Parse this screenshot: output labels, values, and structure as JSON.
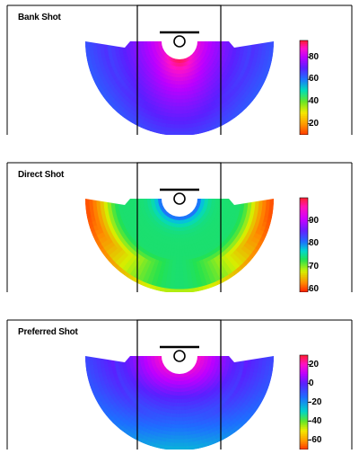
{
  "chart_data": [
    {
      "type": "heatmap",
      "title": "Bank Shot",
      "colorbar": {
        "range": [
          10,
          95
        ],
        "ticks": [
          20,
          40,
          60,
          80
        ],
        "tick_labels": [
          "20",
          "40",
          "60",
          "80"
        ],
        "stops": [
          {
            "value": 10,
            "color": "#ff3b00"
          },
          {
            "value": 20,
            "color": "#ff9c00"
          },
          {
            "value": 30,
            "color": "#f4ea00"
          },
          {
            "value": 40,
            "color": "#67e626"
          },
          {
            "value": 50,
            "color": "#00dfb8"
          },
          {
            "value": 60,
            "color": "#1d74ff"
          },
          {
            "value": 70,
            "color": "#5a20ff"
          },
          {
            "value": 80,
            "color": "#bd00ff"
          },
          {
            "value": 88,
            "color": "#ff12c8"
          },
          {
            "value": 95,
            "color": "#ff1c2d"
          }
        ]
      },
      "field": {
        "kind": "bank",
        "top": 95,
        "mid": 80,
        "bottom": 60,
        "center_boost": 10
      }
    },
    {
      "type": "heatmap",
      "title": "Direct Shot",
      "colorbar": {
        "range": [
          59,
          100
        ],
        "ticks": [
          60,
          70,
          80,
          90
        ],
        "tick_labels": [
          "60",
          "70",
          "80",
          "90"
        ],
        "stops": [
          {
            "value": 59,
            "color": "#ff1d00"
          },
          {
            "value": 63,
            "color": "#ff8a00"
          },
          {
            "value": 68,
            "color": "#d5f000"
          },
          {
            "value": 73,
            "color": "#24e24f"
          },
          {
            "value": 77,
            "color": "#00d7d0"
          },
          {
            "value": 81,
            "color": "#1f6cff"
          },
          {
            "value": 86,
            "color": "#6a1dff"
          },
          {
            "value": 91,
            "color": "#d100ff"
          },
          {
            "value": 96,
            "color": "#ff13b8"
          },
          {
            "value": 100,
            "color": "#ff1f2c"
          }
        ]
      },
      "field": {
        "kind": "direct",
        "center": 100,
        "plateau": 74,
        "edge": 60
      }
    },
    {
      "type": "heatmap",
      "title": "Preferred Shot",
      "colorbar": {
        "range": [
          -70,
          30
        ],
        "ticks": [
          20,
          0,
          -20,
          -40,
          -60
        ],
        "tick_labels": [
          "20",
          "0",
          "-20",
          "-40",
          "-60"
        ],
        "stops": [
          {
            "value": -70,
            "color": "#ff3500"
          },
          {
            "value": -60,
            "color": "#ffa000"
          },
          {
            "value": -50,
            "color": "#f3ea00"
          },
          {
            "value": -40,
            "color": "#60e728"
          },
          {
            "value": -30,
            "color": "#00d6c7"
          },
          {
            "value": -15,
            "color": "#1d6fff"
          },
          {
            "value": 0,
            "color": "#5a20ff"
          },
          {
            "value": 10,
            "color": "#bd00ff"
          },
          {
            "value": 20,
            "color": "#ff10c7"
          },
          {
            "value": 30,
            "color": "#ff1d2d"
          }
        ]
      },
      "field": {
        "kind": "preferred",
        "top": 30,
        "mid": 15,
        "bottom": -15,
        "center_dip": 10
      }
    }
  ]
}
